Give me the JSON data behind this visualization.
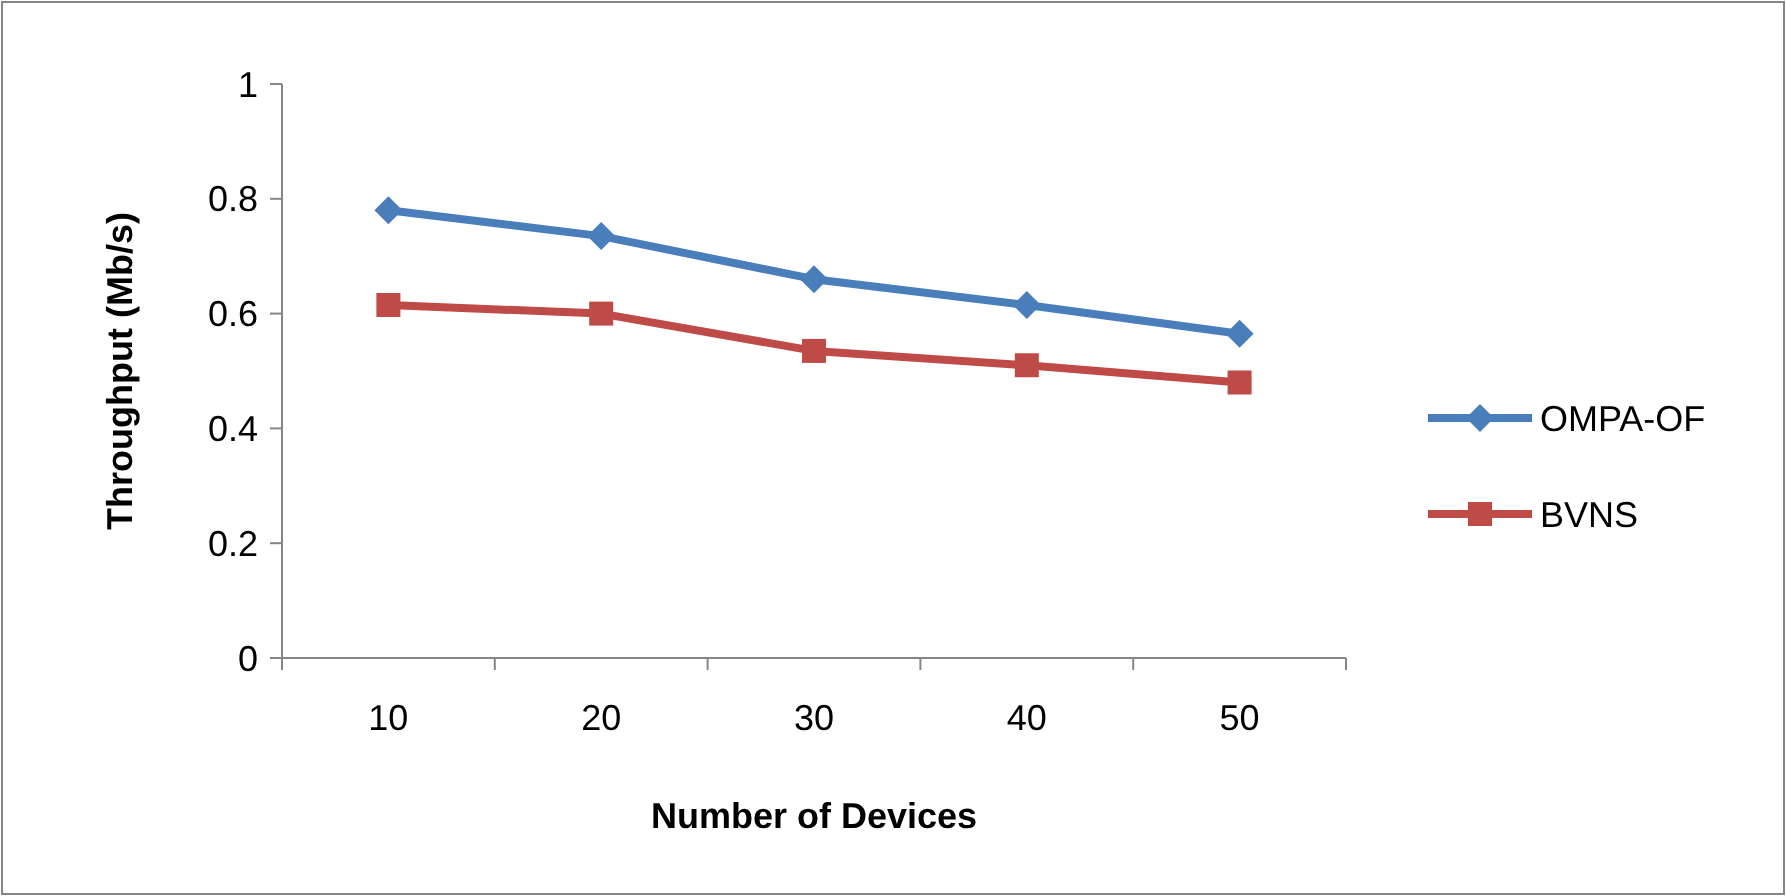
{
  "chart_data": {
    "type": "line",
    "xlabel": "Number of Devices",
    "ylabel": "Throughput (Mb/s)",
    "categories": [
      "10",
      "20",
      "30",
      "40",
      "50"
    ],
    "series": [
      {
        "name": "OMPA-OF",
        "color": "#4a7ebb",
        "marker": "diamond",
        "values": [
          0.78,
          0.735,
          0.66,
          0.615,
          0.565
        ]
      },
      {
        "name": "BVNS",
        "color": "#be4b48",
        "marker": "square",
        "values": [
          0.615,
          0.6,
          0.535,
          0.51,
          0.48
        ]
      }
    ],
    "ylim": [
      0,
      1
    ],
    "yticks": [
      0,
      {
        "value": 0.2,
        "label": "0.2"
      },
      {
        "value": 0.4,
        "label": "0.4"
      },
      {
        "value": 0.6,
        "label": "0.6"
      },
      {
        "value": 0.8,
        "label": "0.8"
      },
      1
    ],
    "grid": false,
    "legend": "right",
    "line_style": "solid"
  }
}
